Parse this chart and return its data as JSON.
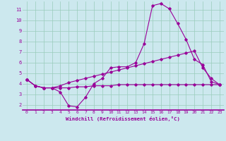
{
  "xlabel": "Windchill (Refroidissement éolien,°C)",
  "bg_color": "#cce8ee",
  "line_color": "#990099",
  "grid_color": "#99ccbb",
  "xlim": [
    -0.5,
    23.5
  ],
  "ylim": [
    1.5,
    11.8
  ],
  "xticks": [
    0,
    1,
    2,
    3,
    4,
    5,
    6,
    7,
    8,
    9,
    10,
    11,
    12,
    13,
    14,
    15,
    16,
    17,
    18,
    19,
    20,
    21,
    22,
    23
  ],
  "yticks": [
    2,
    3,
    4,
    5,
    6,
    7,
    8,
    9,
    10,
    11
  ],
  "series1_x": [
    0,
    1,
    2,
    3,
    4,
    5,
    6,
    7,
    8,
    9,
    10,
    11,
    12,
    13,
    14,
    15,
    16,
    17,
    18,
    19,
    20,
    21,
    22,
    23
  ],
  "series1_y": [
    4.4,
    3.8,
    3.6,
    3.6,
    3.2,
    1.9,
    1.8,
    2.7,
    4.0,
    4.5,
    5.5,
    5.6,
    5.6,
    6.0,
    7.8,
    11.4,
    11.6,
    11.1,
    9.7,
    8.2,
    6.3,
    5.8,
    4.2,
    3.9
  ],
  "series2_x": [
    0,
    1,
    2,
    3,
    4,
    5,
    6,
    7,
    8,
    9,
    10,
    11,
    12,
    13,
    14,
    15,
    16,
    17,
    18,
    19,
    20,
    21,
    22,
    23
  ],
  "series2_y": [
    4.4,
    3.8,
    3.6,
    3.6,
    3.6,
    3.6,
    3.7,
    3.7,
    3.8,
    3.8,
    3.8,
    3.9,
    3.9,
    3.9,
    3.9,
    3.9,
    3.9,
    3.9,
    3.9,
    3.9,
    3.9,
    3.9,
    3.9,
    3.9
  ],
  "series3_x": [
    0,
    1,
    2,
    3,
    4,
    5,
    6,
    7,
    8,
    9,
    10,
    11,
    12,
    13,
    14,
    15,
    16,
    17,
    18,
    19,
    20,
    21,
    22,
    23
  ],
  "series3_y": [
    4.4,
    3.8,
    3.6,
    3.6,
    3.8,
    4.1,
    4.3,
    4.5,
    4.7,
    4.9,
    5.1,
    5.3,
    5.5,
    5.7,
    5.9,
    6.1,
    6.3,
    6.5,
    6.7,
    6.9,
    7.1,
    5.5,
    4.5,
    3.9
  ]
}
